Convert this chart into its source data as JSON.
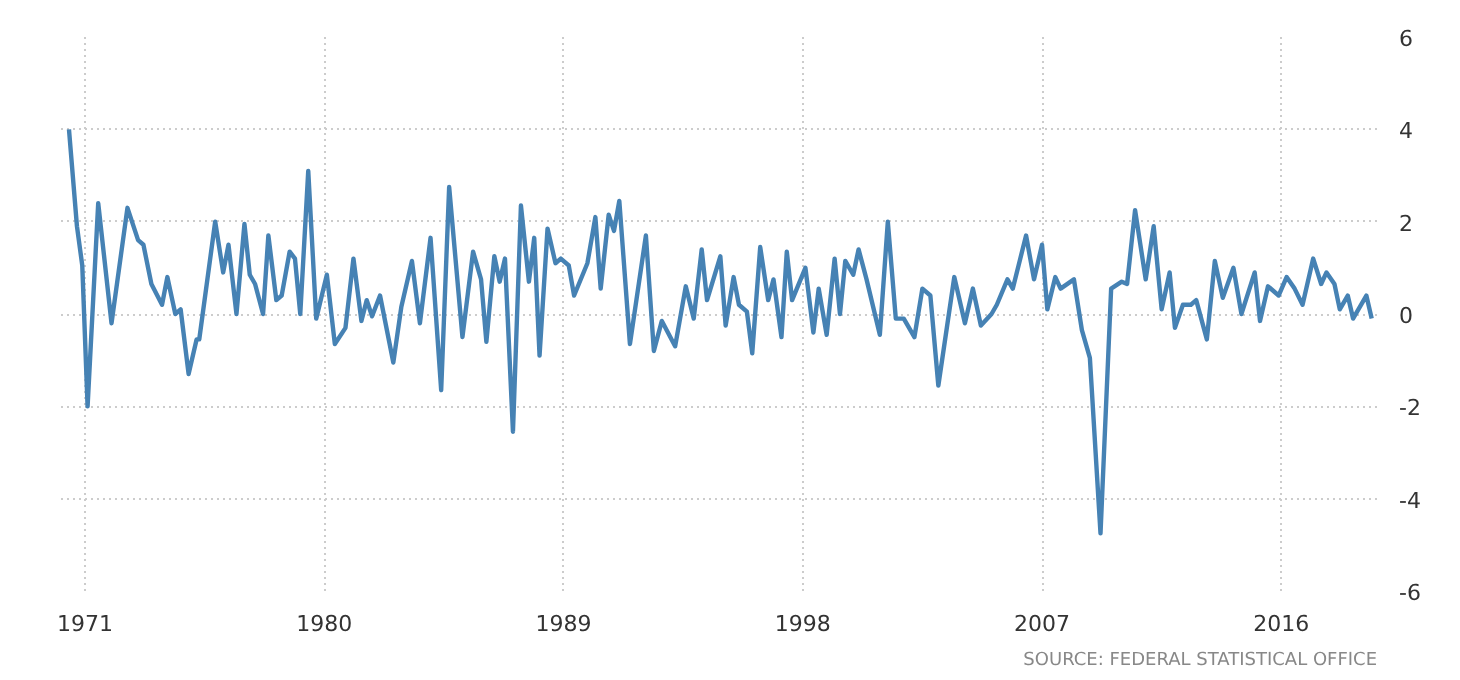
{
  "chart_data": {
    "type": "line",
    "x": [
      1970.4,
      1970.7,
      1970.9,
      1971.1,
      1971.5,
      1972.0,
      1972.6,
      1973.0,
      1973.2,
      1973.5,
      1973.9,
      1974.1,
      1974.4,
      1974.6,
      1974.9,
      1975.2,
      1975.3,
      1975.9,
      1976.2,
      1976.4,
      1976.7,
      1977.0,
      1977.2,
      1977.4,
      1977.7,
      1977.9,
      1978.2,
      1978.4,
      1978.7,
      1978.9,
      1979.1,
      1979.4,
      1979.7,
      1980.1,
      1980.4,
      1980.8,
      1981.1,
      1981.4,
      1981.6,
      1981.8,
      1982.1,
      1982.6,
      1982.9,
      1983.3,
      1983.6,
      1984.0,
      1984.4,
      1984.7,
      1985.2,
      1985.6,
      1985.9,
      1986.1,
      1986.4,
      1986.6,
      1986.8,
      1987.1,
      1987.4,
      1987.7,
      1987.9,
      1988.1,
      1988.4,
      1988.7,
      1988.9,
      1989.2,
      1989.4,
      1989.9,
      1990.2,
      1990.4,
      1990.7,
      1990.9,
      1991.1,
      1991.5,
      1992.1,
      1992.4,
      1992.7,
      1993.2,
      1993.6,
      1993.9,
      1994.2,
      1994.4,
      1994.9,
      1995.1,
      1995.4,
      1995.6,
      1995.9,
      1996.1,
      1996.4,
      1996.7,
      1996.9,
      1997.2,
      1997.4,
      1997.6,
      1998.1,
      1998.4,
      1998.6,
      1998.9,
      1999.2,
      1999.4,
      1999.6,
      1999.9,
      2000.1,
      2000.4,
      2000.9,
      2001.2,
      2001.5,
      2001.8,
      2002.2,
      2002.5,
      2002.8,
      2003.1,
      2003.7,
      2004.1,
      2004.4,
      2004.7,
      2005.1,
      2005.3,
      2005.7,
      2005.9,
      2006.4,
      2006.7,
      2007.0,
      2007.2,
      2007.5,
      2007.7,
      2008.2,
      2008.5,
      2008.8,
      2009.2,
      2009.6,
      2010.0,
      2010.2,
      2010.5,
      2010.9,
      2011.2,
      2011.5,
      2011.8,
      2012.0,
      2012.3,
      2012.6,
      2012.8,
      2013.2,
      2013.5,
      2013.8,
      2014.2,
      2014.5,
      2015.0,
      2015.2,
      2015.5,
      2015.9,
      2016.2,
      2016.5,
      2016.8,
      2017.2,
      2017.5,
      2017.7,
      2018.0,
      2018.2,
      2018.5,
      2018.7,
      2019.2,
      2019.4
    ],
    "series": [
      {
        "color": "#4682b4",
        "values": [
          4.0,
          1.9,
          1.05,
          -2.0,
          2.4,
          -0.2,
          2.3,
          1.6,
          1.5,
          0.65,
          0.2,
          0.8,
          0.0,
          0.1,
          -1.3,
          -0.55,
          -0.55,
          2.0,
          0.9,
          1.5,
          0.0,
          1.95,
          0.85,
          0.65,
          0.0,
          1.7,
          0.3,
          0.4,
          1.35,
          1.2,
          0.0,
          3.1,
          -0.1,
          0.85,
          -0.65,
          -0.3,
          1.2,
          -0.15,
          0.3,
          -0.05,
          0.4,
          -1.05,
          0.15,
          1.15,
          -0.2,
          1.65,
          -1.65,
          2.75,
          -0.5,
          1.35,
          0.75,
          -0.6,
          1.25,
          0.7,
          1.2,
          -2.55,
          2.35,
          0.7,
          1.65,
          -0.9,
          1.85,
          1.1,
          1.2,
          1.05,
          0.4,
          1.1,
          2.1,
          0.55,
          2.15,
          1.8,
          2.45,
          -0.65,
          1.7,
          -0.8,
          -0.15,
          -0.7,
          0.6,
          -0.1,
          1.4,
          0.3,
          1.25,
          -0.25,
          0.8,
          0.2,
          0.05,
          -0.85,
          1.45,
          0.3,
          0.75,
          -0.5,
          1.35,
          0.3,
          1.0,
          -0.4,
          0.55,
          -0.45,
          1.2,
          0.0,
          1.15,
          0.85,
          1.4,
          0.75,
          -0.45,
          2.0,
          -0.1,
          -0.1,
          -0.5,
          0.55,
          0.4,
          -1.55,
          0.8,
          -0.2,
          0.55,
          -0.25,
          0.0,
          0.2,
          0.75,
          0.55,
          1.7,
          0.75,
          1.5,
          0.1,
          0.8,
          0.55,
          0.75,
          -0.35,
          -0.95,
          -4.75,
          0.55,
          0.7,
          0.65,
          2.25,
          0.75,
          1.9,
          0.1,
          0.9,
          -0.3,
          0.2,
          0.2,
          0.3,
          -0.55,
          1.15,
          0.35,
          1.0,
          0.0,
          0.9,
          -0.15,
          0.6,
          0.4,
          0.8,
          0.55,
          0.2,
          1.2,
          0.65,
          0.9,
          0.65,
          0.1,
          0.4,
          -0.1,
          0.4,
          -0.1
        ]
      }
    ],
    "xlim": [
      1970.1,
      2019.6
    ],
    "ylim": [
      -6,
      6
    ],
    "xticks": [
      1971,
      1980,
      1989,
      1998,
      2007,
      2016
    ],
    "yticks": [
      -6,
      -4,
      -2,
      0,
      2,
      4,
      6
    ],
    "grid": true,
    "marker": "none",
    "line_style": "solid",
    "annotations": [
      "SOURCE: FEDERAL STATISTICAL OFFICE"
    ]
  }
}
